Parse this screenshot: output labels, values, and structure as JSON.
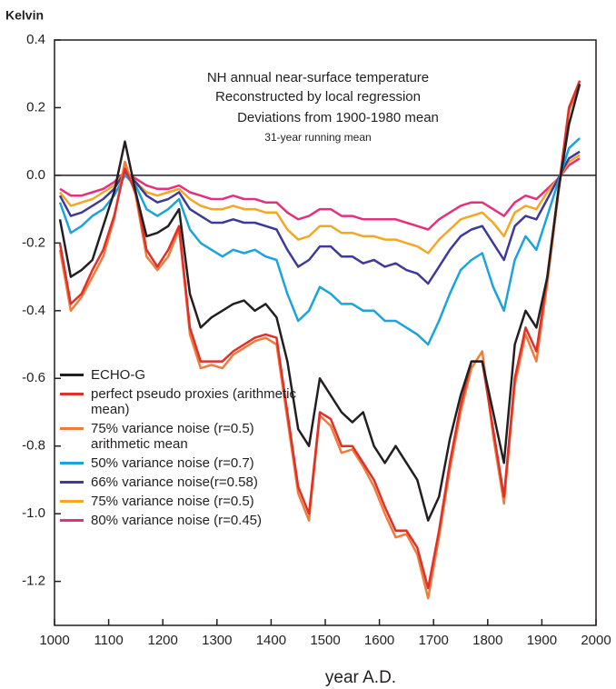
{
  "chart_data": {
    "type": "line",
    "y_label": "Kelvin",
    "x_label": "year A.D.",
    "annotations": [
      "NH annual near-surface temperature",
      "Reconstructed by local regression",
      "Deviations from 1900-1980 mean",
      "31-year running mean"
    ],
    "xlim": [
      1000,
      2000
    ],
    "xticks": [
      1000,
      1100,
      1200,
      1300,
      1400,
      1500,
      1600,
      1700,
      1800,
      1900,
      2000
    ],
    "ylim": [
      -1.33,
      0.4
    ],
    "yticks": [
      0.4,
      0.2,
      {
        "value": 0,
        "label": "0.0"
      },
      -0.2,
      -0.4,
      -0.6,
      -0.8,
      {
        "value": -1,
        "label": "-1.0"
      },
      -1.2
    ],
    "reference_line": 0,
    "x": [
      1010,
      1030,
      1050,
      1070,
      1090,
      1110,
      1130,
      1150,
      1170,
      1190,
      1210,
      1230,
      1250,
      1270,
      1290,
      1310,
      1330,
      1350,
      1370,
      1390,
      1410,
      1430,
      1450,
      1470,
      1490,
      1510,
      1530,
      1550,
      1570,
      1590,
      1610,
      1630,
      1650,
      1670,
      1690,
      1710,
      1730,
      1750,
      1770,
      1790,
      1810,
      1830,
      1850,
      1870,
      1890,
      1910,
      1930,
      1950,
      1970
    ],
    "series": [
      {
        "name": "ECHO-G",
        "color": "#231f20",
        "values": [
          -0.13,
          -0.3,
          -0.28,
          -0.25,
          -0.15,
          -0.05,
          0.1,
          -0.05,
          -0.18,
          -0.17,
          -0.15,
          -0.1,
          -0.35,
          -0.45,
          -0.42,
          -0.4,
          -0.38,
          -0.37,
          -0.4,
          -0.38,
          -0.42,
          -0.55,
          -0.75,
          -0.8,
          -0.6,
          -0.65,
          -0.7,
          -0.73,
          -0.7,
          -0.8,
          -0.85,
          -0.8,
          -0.85,
          -0.9,
          -1.02,
          -0.95,
          -0.78,
          -0.65,
          -0.55,
          -0.55,
          -0.7,
          -0.85,
          -0.5,
          -0.4,
          -0.45,
          -0.3,
          -0.05,
          0.15,
          0.27
        ]
      },
      {
        "name": "perfect pseudo proxies (arithmetic mean)",
        "color": "#e0302a",
        "values": [
          -0.2,
          -0.38,
          -0.35,
          -0.28,
          -0.22,
          -0.12,
          0.02,
          -0.05,
          -0.22,
          -0.27,
          -0.22,
          -0.15,
          -0.45,
          -0.55,
          -0.55,
          -0.55,
          -0.52,
          -0.5,
          -0.48,
          -0.47,
          -0.48,
          -0.7,
          -0.92,
          -1.0,
          -0.7,
          -0.72,
          -0.8,
          -0.8,
          -0.85,
          -0.9,
          -0.98,
          -1.05,
          -1.05,
          -1.1,
          -1.22,
          -1.05,
          -0.85,
          -0.68,
          -0.55,
          -0.55,
          -0.75,
          -0.95,
          -0.6,
          -0.45,
          -0.52,
          -0.3,
          -0.05,
          0.2,
          0.28
        ]
      },
      {
        "name": "75% variance noise (r=0.5) arithmetic mean",
        "color": "#f07b3a",
        "values": [
          -0.22,
          -0.4,
          -0.36,
          -0.3,
          -0.24,
          -0.13,
          0.04,
          -0.06,
          -0.24,
          -0.28,
          -0.24,
          -0.16,
          -0.47,
          -0.57,
          -0.56,
          -0.57,
          -0.53,
          -0.51,
          -0.49,
          -0.48,
          -0.5,
          -0.72,
          -0.94,
          -1.02,
          -0.71,
          -0.74,
          -0.82,
          -0.81,
          -0.86,
          -0.92,
          -1.0,
          -1.07,
          -1.06,
          -1.12,
          -1.25,
          -1.07,
          -0.87,
          -0.7,
          -0.57,
          -0.52,
          -0.77,
          -0.97,
          -0.62,
          -0.47,
          -0.55,
          -0.32,
          -0.06,
          0.19,
          0.27
        ]
      },
      {
        "name": "50% variance noise (r=0.7)",
        "color": "#1aa3dc",
        "values": [
          -0.08,
          -0.17,
          -0.15,
          -0.12,
          -0.1,
          -0.06,
          0.0,
          -0.03,
          -0.1,
          -0.12,
          -0.1,
          -0.07,
          -0.16,
          -0.2,
          -0.22,
          -0.24,
          -0.22,
          -0.23,
          -0.22,
          -0.24,
          -0.25,
          -0.35,
          -0.43,
          -0.4,
          -0.33,
          -0.35,
          -0.38,
          -0.38,
          -0.4,
          -0.4,
          -0.43,
          -0.43,
          -0.45,
          -0.47,
          -0.5,
          -0.43,
          -0.35,
          -0.28,
          -0.25,
          -0.23,
          -0.33,
          -0.4,
          -0.25,
          -0.18,
          -0.22,
          -0.12,
          -0.02,
          0.08,
          0.11
        ]
      },
      {
        "name": "66% variance noise(r=0.58)",
        "color": "#3d3a9a",
        "values": [
          -0.06,
          -0.12,
          -0.11,
          -0.09,
          -0.07,
          -0.04,
          0.01,
          -0.02,
          -0.06,
          -0.08,
          -0.07,
          -0.05,
          -0.1,
          -0.12,
          -0.14,
          -0.14,
          -0.13,
          -0.14,
          -0.14,
          -0.15,
          -0.16,
          -0.22,
          -0.27,
          -0.25,
          -0.21,
          -0.21,
          -0.24,
          -0.24,
          -0.26,
          -0.25,
          -0.27,
          -0.26,
          -0.28,
          -0.29,
          -0.32,
          -0.27,
          -0.22,
          -0.18,
          -0.16,
          -0.15,
          -0.2,
          -0.25,
          -0.15,
          -0.12,
          -0.13,
          -0.07,
          -0.01,
          0.05,
          0.07
        ]
      },
      {
        "name": "75% variance noise (r=0.5)",
        "color": "#f5a623",
        "values": [
          -0.05,
          -0.09,
          -0.08,
          -0.07,
          -0.05,
          -0.03,
          0.01,
          -0.02,
          -0.05,
          -0.06,
          -0.05,
          -0.04,
          -0.07,
          -0.09,
          -0.1,
          -0.1,
          -0.09,
          -0.1,
          -0.1,
          -0.11,
          -0.11,
          -0.16,
          -0.19,
          -0.18,
          -0.15,
          -0.15,
          -0.17,
          -0.17,
          -0.18,
          -0.18,
          -0.19,
          -0.19,
          -0.2,
          -0.21,
          -0.23,
          -0.19,
          -0.16,
          -0.13,
          -0.12,
          -0.11,
          -0.14,
          -0.18,
          -0.11,
          -0.09,
          -0.1,
          -0.05,
          -0.01,
          0.04,
          0.06
        ]
      },
      {
        "name": "80% variance noise (r=0.45)",
        "color": "#e3307f",
        "values": [
          -0.04,
          -0.06,
          -0.06,
          -0.05,
          -0.04,
          -0.02,
          0.01,
          -0.01,
          -0.03,
          -0.04,
          -0.04,
          -0.03,
          -0.05,
          -0.06,
          -0.07,
          -0.07,
          -0.06,
          -0.07,
          -0.07,
          -0.08,
          -0.08,
          -0.11,
          -0.13,
          -0.12,
          -0.1,
          -0.1,
          -0.12,
          -0.12,
          -0.13,
          -0.13,
          -0.13,
          -0.13,
          -0.14,
          -0.15,
          -0.16,
          -0.13,
          -0.11,
          -0.09,
          -0.08,
          -0.08,
          -0.1,
          -0.12,
          -0.08,
          -0.06,
          -0.07,
          -0.04,
          -0.01,
          0.03,
          0.05
        ]
      }
    ]
  }
}
